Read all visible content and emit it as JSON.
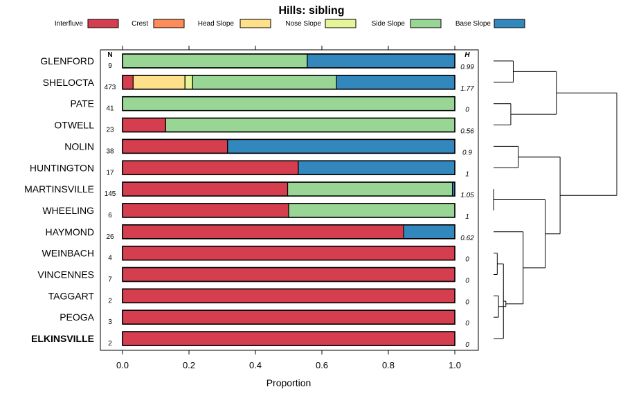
{
  "chart_data": {
    "type": "stacked-bar",
    "title": "Hills: sibling",
    "xlabel": "Proportion",
    "xlim": [
      0,
      1
    ],
    "xticks": [
      "0.0",
      "0.2",
      "0.4",
      "0.6",
      "0.8",
      "1.0"
    ],
    "n_header": "N",
    "h_header": "H",
    "legend_position": "top",
    "series": [
      {
        "name": "Interfluve",
        "color": "#D53E4F"
      },
      {
        "name": "Crest",
        "color": "#FC8D59"
      },
      {
        "name": "Head Slope",
        "color": "#FEE08B"
      },
      {
        "name": "Nose Slope",
        "color": "#E6F598"
      },
      {
        "name": "Side Slope",
        "color": "#99D594"
      },
      {
        "name": "Base Slope",
        "color": "#3288BD"
      }
    ],
    "rows": [
      {
        "name": "GLENFORD",
        "n": "9",
        "h": "0.99",
        "bold": false,
        "values": [
          0,
          0,
          0,
          0,
          0.556,
          0.444
        ]
      },
      {
        "name": "SHELOCTA",
        "n": "473",
        "h": "1.77",
        "bold": false,
        "values": [
          0.032,
          0,
          0.156,
          0.023,
          0.433,
          0.356
        ]
      },
      {
        "name": "PATE",
        "n": "41",
        "h": "0",
        "bold": false,
        "values": [
          0,
          0,
          0,
          0,
          1.0,
          0
        ]
      },
      {
        "name": "OTWELL",
        "n": "23",
        "h": "0.56",
        "bold": false,
        "values": [
          0.13,
          0,
          0,
          0,
          0.87,
          0
        ]
      },
      {
        "name": "NOLIN",
        "n": "38",
        "h": "0.9",
        "bold": false,
        "values": [
          0.316,
          0,
          0,
          0,
          0,
          0.684
        ]
      },
      {
        "name": "HUNTINGTON",
        "n": "17",
        "h": "1",
        "bold": false,
        "values": [
          0.529,
          0,
          0,
          0,
          0,
          0.471
        ]
      },
      {
        "name": "MARTINSVILLE",
        "n": "145",
        "h": "1.05",
        "bold": false,
        "values": [
          0.497,
          0,
          0,
          0,
          0.496,
          0.007
        ]
      },
      {
        "name": "WHEELING",
        "n": "6",
        "h": "1",
        "bold": false,
        "values": [
          0.5,
          0,
          0,
          0,
          0.5,
          0
        ]
      },
      {
        "name": "HAYMOND",
        "n": "26",
        "h": "0.62",
        "bold": false,
        "values": [
          0.846,
          0,
          0,
          0,
          0,
          0.154
        ]
      },
      {
        "name": "WEINBACH",
        "n": "4",
        "h": "0",
        "bold": false,
        "values": [
          1.0,
          0,
          0,
          0,
          0,
          0
        ]
      },
      {
        "name": "VINCENNES",
        "n": "7",
        "h": "0",
        "bold": false,
        "values": [
          1.0,
          0,
          0,
          0,
          0,
          0
        ]
      },
      {
        "name": "TAGGART",
        "n": "2",
        "h": "0",
        "bold": false,
        "values": [
          1.0,
          0,
          0,
          0,
          0,
          0
        ]
      },
      {
        "name": "PEOGA",
        "n": "3",
        "h": "0",
        "bold": false,
        "values": [
          1.0,
          0,
          0,
          0,
          0,
          0
        ]
      },
      {
        "name": "ELKINSVILLE",
        "n": "2",
        "h": "0",
        "bold": true,
        "values": [
          1.0,
          0,
          0,
          0,
          0,
          0
        ]
      }
    ],
    "dendrogram": {
      "type": "dendrogram",
      "merges": [
        {
          "left": "GLENFORD",
          "right": "SHELOCTA",
          "height": 0.84
        },
        {
          "left": "PATE",
          "right": "OTWELL",
          "height": 0.86
        },
        {
          "left": "c0",
          "right": "c1",
          "height": 0.49
        },
        {
          "left": "NOLIN",
          "right": "HUNTINGTON",
          "height": 0.8
        },
        {
          "left": "MARTINSVILLE",
          "right": "WHEELING",
          "height": 1.0
        },
        {
          "left": "WEINBACH",
          "right": "VINCENNES",
          "height": 0.97
        },
        {
          "left": "TAGGART",
          "right": "PEOGA",
          "height": 0.96
        },
        {
          "left": "c5",
          "right": "ELKINSVILLE",
          "height": 0.92
        },
        {
          "left": "c6",
          "right": "c7",
          "height": 0.9
        },
        {
          "left": "HAYMOND",
          "right": "c8",
          "height": 0.76
        },
        {
          "left": "c4",
          "right": "c9",
          "height": 0.58
        },
        {
          "left": "c3",
          "right": "c10",
          "height": 0.46
        },
        {
          "left": "c2",
          "right": "c11",
          "height": 0.0
        }
      ]
    }
  }
}
